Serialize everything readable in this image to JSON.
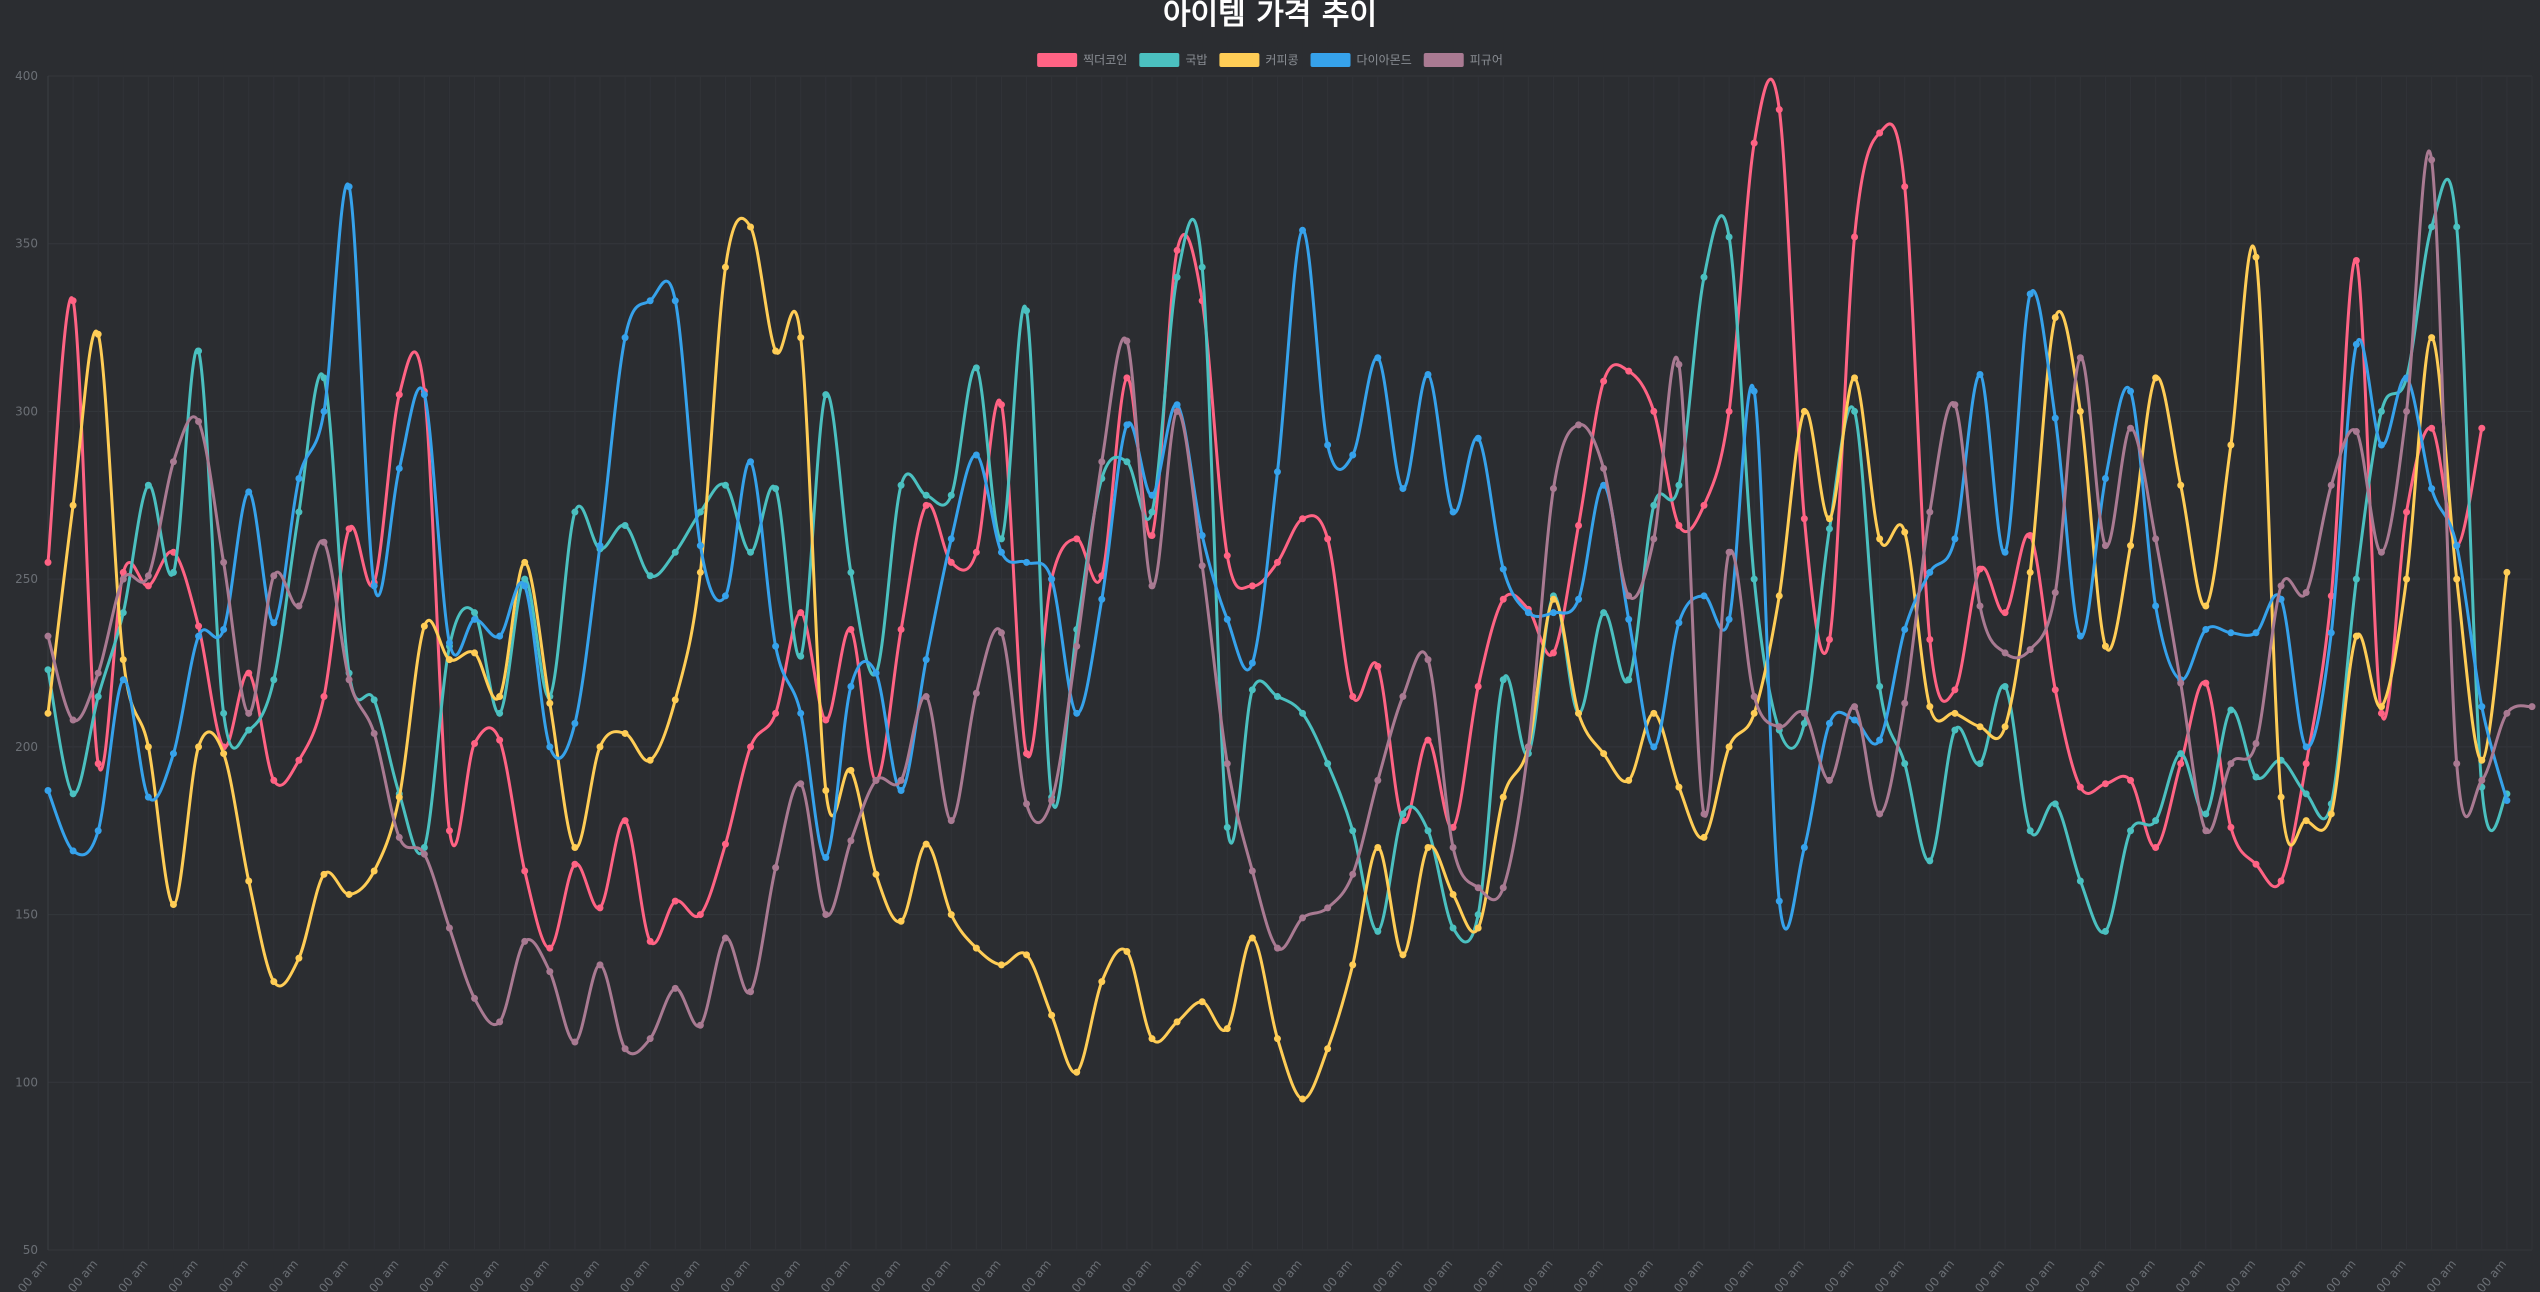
{
  "chart_data": {
    "type": "line",
    "title": "아이템 가격 추이",
    "xlabel": "",
    "ylabel": "",
    "ylim": [
      50,
      400
    ],
    "yticks": [
      50,
      100,
      150,
      200,
      250,
      300,
      350,
      400
    ],
    "grid": true,
    "legend_position": "top-center",
    "x_tick_label": "00 am",
    "background": "#2b2d31",
    "series": [
      {
        "name": "찍더코인",
        "color": "#ff6384",
        "values": [
          255,
          333,
          195,
          252,
          248,
          258,
          236,
          200,
          222,
          190,
          196,
          215,
          265,
          249,
          305,
          306,
          175,
          201,
          202,
          163,
          140,
          165,
          152,
          178,
          142,
          154,
          150,
          171,
          200,
          210,
          240,
          208,
          235,
          190,
          235,
          272,
          255,
          258,
          302,
          198,
          250,
          262,
          251,
          310,
          263,
          348,
          333,
          257,
          248,
          255,
          268,
          262,
          215,
          224,
          178,
          202,
          176,
          218,
          244,
          241,
          228,
          266,
          309,
          312,
          300,
          266,
          272,
          300,
          380,
          390,
          268,
          232,
          352,
          383,
          367,
          232,
          217,
          253,
          240,
          263,
          217,
          188,
          189,
          190,
          170,
          195,
          219,
          176,
          165,
          160,
          195,
          245,
          345,
          210,
          270,
          295,
          260,
          295
        ]
      },
      {
        "name": "국밥",
        "color": "#4bc0c0",
        "values": [
          223,
          186,
          215,
          240,
          278,
          252,
          318,
          210,
          205,
          220,
          270,
          310,
          222,
          214,
          186,
          170,
          230,
          240,
          210,
          250,
          215,
          270,
          259,
          266,
          251,
          258,
          270,
          278,
          258,
          277,
          227,
          305,
          252,
          222,
          278,
          275,
          275,
          313,
          262,
          330,
          185,
          235,
          280,
          285,
          270,
          340,
          343,
          176,
          217,
          215,
          210,
          195,
          175,
          145,
          180,
          175,
          146,
          150,
          220,
          198,
          245,
          210,
          240,
          220,
          272,
          278,
          340,
          352,
          250,
          205,
          207,
          265,
          300,
          218,
          195,
          166,
          205,
          195,
          218,
          175,
          183,
          160,
          145,
          175,
          178,
          198,
          180,
          211,
          191,
          196,
          186,
          183,
          250,
          300,
          310,
          355,
          355,
          188,
          186
        ]
      },
      {
        "name": "커피콩",
        "color": "#ffcd56",
        "values": [
          210,
          272,
          323,
          226,
          200,
          153,
          200,
          198,
          160,
          130,
          137,
          162,
          156,
          163,
          185,
          236,
          226,
          228,
          215,
          255,
          213,
          170,
          200,
          204,
          196,
          214,
          252,
          343,
          355,
          318,
          322,
          187,
          193,
          162,
          148,
          171,
          150,
          140,
          135,
          138,
          120,
          103,
          130,
          139,
          113,
          118,
          124,
          116,
          143,
          113,
          95,
          110,
          135,
          170,
          138,
          170,
          156,
          146,
          185,
          200,
          244,
          210,
          198,
          190,
          210,
          188,
          173,
          200,
          210,
          245,
          300,
          268,
          310,
          262,
          264,
          212,
          210,
          206,
          206,
          252,
          328,
          300,
          230,
          260,
          310,
          278,
          242,
          290,
          346,
          185,
          178,
          180,
          233,
          212,
          250,
          322,
          250,
          196,
          252
        ]
      },
      {
        "name": "다이아몬드",
        "color": "#36a2eb",
        "values": [
          187,
          169,
          175,
          220,
          185,
          198,
          233,
          235,
          276,
          237,
          280,
          300,
          367,
          248,
          283,
          305,
          231,
          238,
          233,
          248,
          200,
          207,
          260,
          322,
          333,
          333,
          260,
          245,
          285,
          230,
          210,
          167,
          218,
          222,
          187,
          226,
          262,
          287,
          258,
          255,
          250,
          210,
          244,
          296,
          275,
          302,
          263,
          238,
          225,
          282,
          354,
          290,
          287,
          316,
          277,
          311,
          270,
          292,
          253,
          240,
          240,
          244,
          278,
          238,
          200,
          237,
          245,
          238,
          306,
          154,
          170,
          207,
          208,
          202,
          235,
          252,
          262,
          311,
          258,
          335,
          298,
          233,
          280,
          306,
          242,
          220,
          235,
          234,
          234,
          244,
          200,
          234,
          320,
          290,
          310,
          277,
          260,
          212,
          184
        ]
      },
      {
        "name": "피규어",
        "color": "#a97a92",
        "values": [
          233,
          208,
          222,
          250,
          251,
          285,
          297,
          255,
          210,
          251,
          242,
          261,
          220,
          204,
          173,
          168,
          146,
          125,
          118,
          142,
          133,
          112,
          135,
          110,
          113,
          128,
          117,
          143,
          127,
          164,
          189,
          150,
          172,
          190,
          190,
          215,
          178,
          216,
          234,
          183,
          184,
          230,
          285,
          321,
          248,
          300,
          254,
          195,
          163,
          140,
          149,
          152,
          162,
          190,
          215,
          226,
          170,
          158,
          158,
          200,
          277,
          296,
          283,
          245,
          262,
          314,
          180,
          258,
          215,
          206,
          210,
          190,
          212,
          180,
          213,
          270,
          302,
          242,
          228,
          229,
          246,
          316,
          260,
          295,
          262,
          219,
          175,
          195,
          201,
          248,
          246,
          278,
          294,
          258,
          300,
          375,
          195,
          190,
          210,
          212
        ]
      }
    ]
  }
}
